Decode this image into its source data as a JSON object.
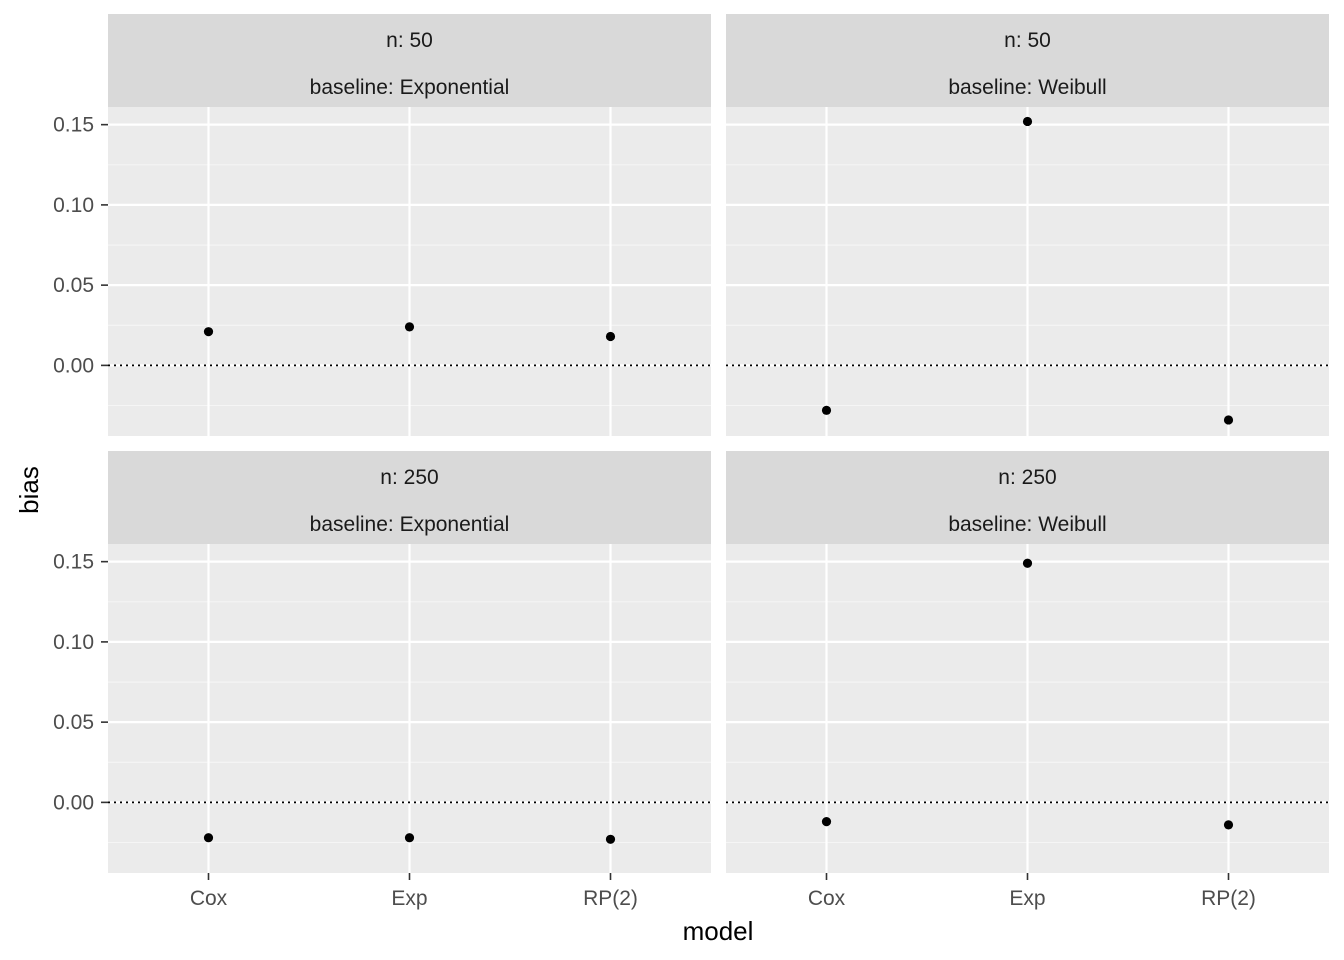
{
  "chart_data": {
    "type": "scatter",
    "xlabel": "model",
    "ylabel": "bias",
    "categories": [
      "Cox",
      "Exp",
      "RP(2)"
    ],
    "y_ticks": [
      0.0,
      0.05,
      0.1,
      0.15
    ],
    "y_tick_labels": [
      "0.00",
      "0.05",
      "0.10",
      "0.15"
    ],
    "ylim": [
      -0.044,
      0.161
    ],
    "reference_line": {
      "y": 0,
      "style": "dotted"
    },
    "grid": true,
    "panels": [
      {
        "strip": [
          "n: 50",
          "baseline: Exponential"
        ],
        "values": [
          0.021,
          0.024,
          0.018
        ]
      },
      {
        "strip": [
          "n: 50",
          "baseline: Weibull"
        ],
        "values": [
          -0.028,
          0.152,
          -0.034
        ]
      },
      {
        "strip": [
          "n: 250",
          "baseline: Exponential"
        ],
        "values": [
          -0.022,
          -0.022,
          -0.023
        ]
      },
      {
        "strip": [
          "n: 250",
          "baseline: Weibull"
        ],
        "values": [
          -0.012,
          0.149,
          -0.014
        ]
      }
    ]
  },
  "colors": {
    "panel_background": "#ebebeb",
    "strip_background": "#d9d9d9",
    "grid_major": "#ffffff",
    "grid_minor": "#f5f5f5",
    "point": "#000000"
  }
}
